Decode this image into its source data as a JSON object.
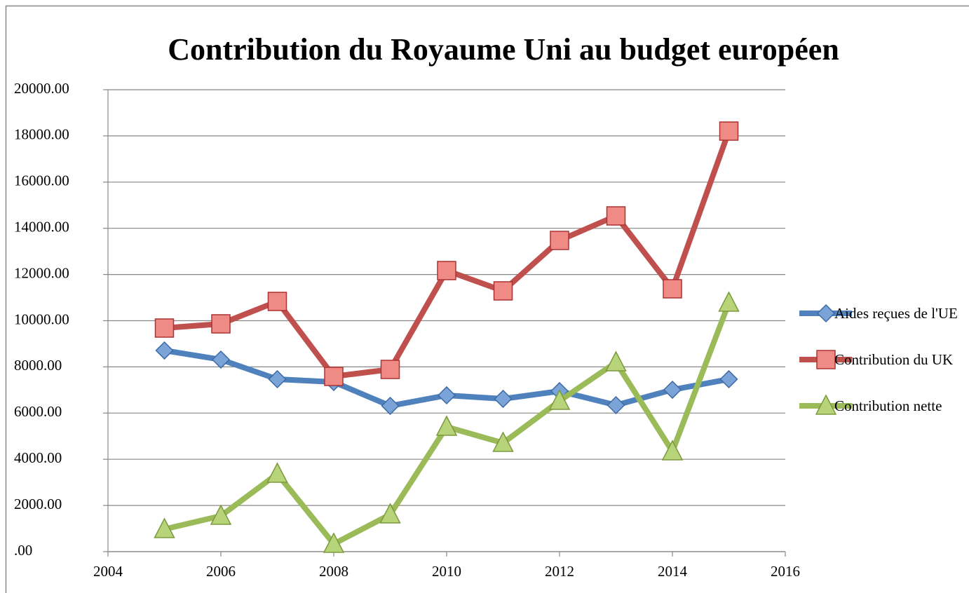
{
  "chart_data": {
    "type": "line",
    "title": "Contribution du Royaume Uni au budget européen",
    "x": [
      2005,
      2006,
      2007,
      2008,
      2009,
      2010,
      2011,
      2012,
      2013,
      2014,
      2015
    ],
    "series": [
      {
        "name": "Aides reçues de l'UE",
        "color": "#4f81bd",
        "marker": "diamond",
        "values": [
          8710,
          8315,
          7466,
          7344,
          6312,
          6768,
          6616,
          6950,
          6343,
          7010,
          7466
        ]
      },
      {
        "name": "Contribution du UK",
        "color": "#c0504d",
        "marker": "square",
        "values": [
          9681,
          9863,
          10834,
          7587,
          7890,
          12170,
          11290,
          13475,
          14537,
          11381,
          18209
        ]
      },
      {
        "name": "Contribution nette",
        "color": "#9bbb59",
        "marker": "triangle",
        "values": [
          971,
          1548,
          3369,
          334,
          1608,
          5402,
          4704,
          6525,
          8194,
          4340,
          10774
        ]
      }
    ],
    "xlim": [
      2004,
      2016
    ],
    "xticks": [
      2004,
      2006,
      2008,
      2010,
      2012,
      2014,
      2016
    ],
    "ylim": [
      0,
      20000
    ],
    "yticks": [
      {
        "value": 0,
        "label": ".00"
      },
      {
        "value": 2000,
        "label": "2000.00"
      },
      {
        "value": 4000,
        "label": "4000.00"
      },
      {
        "value": 6000,
        "label": "6000.00"
      },
      {
        "value": 8000,
        "label": "8000.00"
      },
      {
        "value": 10000,
        "label": "10000.00"
      },
      {
        "value": 12000,
        "label": "12000.00"
      },
      {
        "value": 14000,
        "label": "14000.00"
      },
      {
        "value": 16000,
        "label": "16000.00"
      },
      {
        "value": 18000,
        "label": "18000.00"
      },
      {
        "value": 20000,
        "label": "20000.00"
      }
    ],
    "grid": true,
    "legend": "right"
  }
}
